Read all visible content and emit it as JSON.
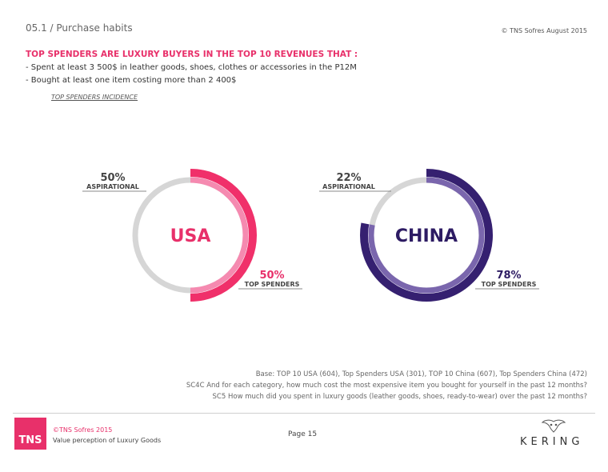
{
  "header": {
    "section": "05.1 / Purchase habits",
    "copyright": "© TNS Sofres August 2015"
  },
  "intro": {
    "headline": "TOP SPENDERS ARE LUXURY BUYERS IN THE TOP 10 REVENUES THAT :",
    "criteria": [
      "- Spent at least 3 500$ in leather goods, shoes, clothes or accessories in the P12M",
      "- Bought at least one item costing more than 2 400$"
    ],
    "incidence_label": "TOP SPENDERS INCIDENCE"
  },
  "chart_data": [
    {
      "type": "pie",
      "center_label": "USA",
      "slices": [
        {
          "label": "TOP SPENDERS",
          "value": 50,
          "display": "50%"
        },
        {
          "label": "ASPIRATIONAL",
          "value": 50,
          "display": "50%"
        }
      ]
    },
    {
      "type": "pie",
      "center_label": "CHINA",
      "slices": [
        {
          "label": "TOP SPENDERS",
          "value": 78,
          "display": "78%"
        },
        {
          "label": "ASPIRATIONAL",
          "value": 22,
          "display": "22%"
        }
      ]
    }
  ],
  "colors": {
    "usa_accent": "#f0306a",
    "usa_inner": "#f58ab0",
    "china_accent": "#352070",
    "china_inner": "#7a66ad",
    "aspirational_gray": "#d6d6d6",
    "brand_pink": "#e8306a"
  },
  "notes": {
    "base": "Base: TOP 10 USA (604), Top Spenders USA (301), TOP 10 China (607), Top Spenders China (472)",
    "sc4c": "SC4C And for each category, how much cost the most expensive item you bought for yourself in the past 12 months?",
    "sc5": "SC5 How much did you spent in luxury goods (leather goods, shoes, ready-to-wear) over the past 12 months?"
  },
  "footer": {
    "tns_logo": "TNS",
    "company": "©TNS Sofres 2015",
    "study": "Value perception of Luxury Goods",
    "page": "Page 15",
    "brand": "KERING",
    "brand_icon": "kering-owl-icon"
  }
}
